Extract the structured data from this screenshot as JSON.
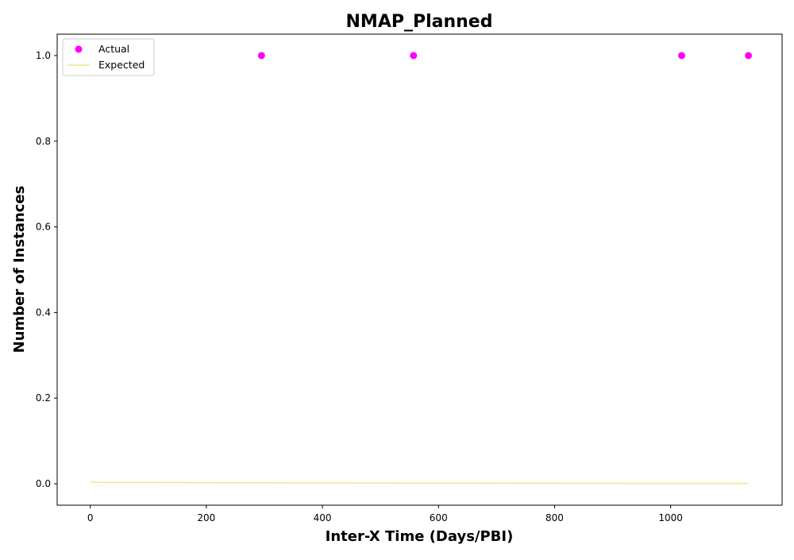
{
  "chart_data": {
    "type": "scatter",
    "title": "NMAP_Planned",
    "xlabel": "Inter-X Time (Days/PBI)",
    "ylabel": "Number of Instances",
    "xlim": [
      -57,
      1192
    ],
    "ylim": [
      -0.05,
      1.05
    ],
    "xticks": [
      0,
      200,
      400,
      600,
      800,
      1000
    ],
    "yticks": [
      0.0,
      0.2,
      0.4,
      0.6,
      0.8,
      1.0
    ],
    "xtick_labels": [
      "0",
      "200",
      "400",
      "600",
      "800",
      "1000"
    ],
    "ytick_labels": [
      "0.0",
      "0.2",
      "0.4",
      "0.6",
      "0.8",
      "1.0"
    ],
    "grid": false,
    "legend_position": "top-left",
    "series": [
      {
        "name": "Actual",
        "kind": "scatter",
        "color": "#ff00ff",
        "x": [
          295,
          557,
          1019,
          1134
        ],
        "y": [
          1,
          1,
          1,
          1
        ]
      },
      {
        "name": "Expected",
        "kind": "line",
        "color": "#f0e68c",
        "x": [
          0,
          100,
          200,
          300,
          400,
          500,
          600,
          700,
          800,
          900,
          1000,
          1134
        ],
        "y": [
          0.0035,
          0.003,
          0.0026,
          0.0022,
          0.0019,
          0.0017,
          0.0014,
          0.0012,
          0.0011,
          0.0009,
          0.0008,
          0.0006
        ]
      }
    ]
  }
}
